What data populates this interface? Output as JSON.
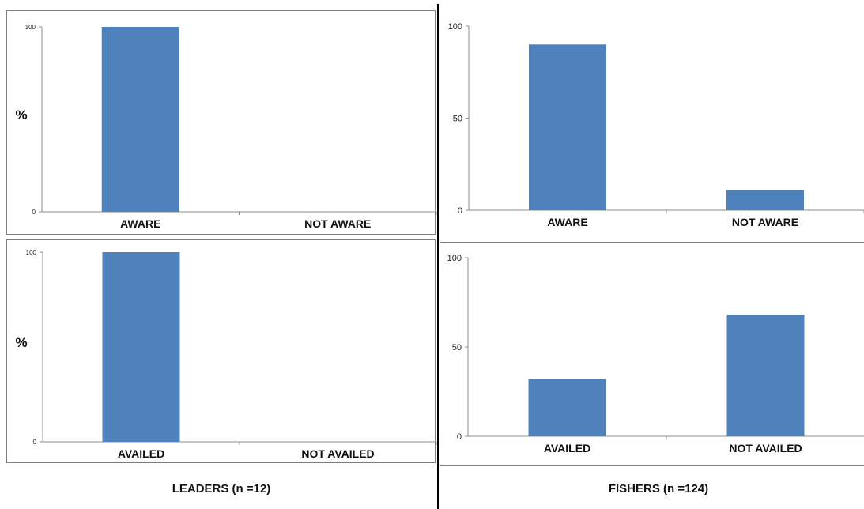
{
  "captions": {
    "left": "LEADERS (n =12)",
    "right": "FISHERS (n =124)"
  },
  "colors": {
    "bar": "#4F81BD",
    "axis": "#8c8c8c",
    "border": "#7f7f7f"
  },
  "chart_data": [
    {
      "id": "leaders_awareness",
      "type": "bar",
      "categories": [
        "AWARE",
        "NOT AWARE"
      ],
      "values": [
        100,
        0
      ],
      "ylabel": "%",
      "ylim": [
        0,
        100
      ],
      "yticks": [
        "0",
        "100"
      ]
    },
    {
      "id": "fishers_awareness",
      "type": "bar",
      "categories": [
        "AWARE",
        "NOT AWARE"
      ],
      "values": [
        90,
        11
      ],
      "ylabel": "",
      "ylim": [
        0,
        100
      ],
      "yticks": [
        "0",
        "50",
        "100"
      ]
    },
    {
      "id": "leaders_availed",
      "type": "bar",
      "categories": [
        "AVAILED",
        "NOT AVAILED"
      ],
      "values": [
        100,
        0
      ],
      "ylabel": "%",
      "ylim": [
        0,
        100
      ],
      "yticks": [
        "0",
        "100"
      ]
    },
    {
      "id": "fishers_availed",
      "type": "bar",
      "categories": [
        "AVAILED",
        "NOT AVAILED"
      ],
      "values": [
        32,
        68
      ],
      "ylabel": "",
      "ylim": [
        0,
        100
      ],
      "yticks": [
        "0",
        "50",
        "100"
      ]
    }
  ]
}
